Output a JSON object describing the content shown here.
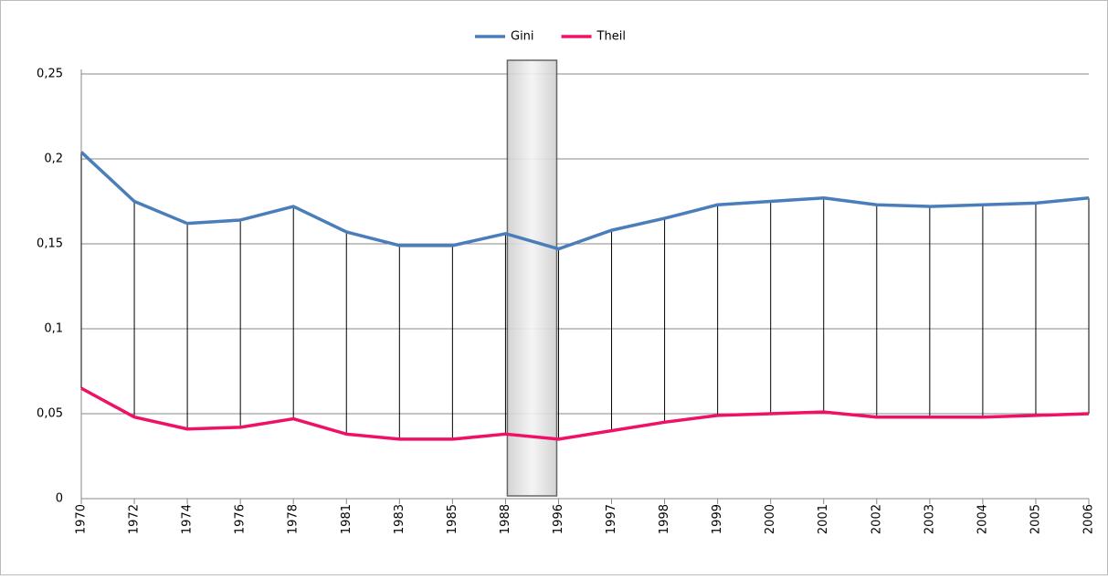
{
  "chart_data": {
    "type": "line",
    "categories": [
      "1970",
      "1972",
      "1974",
      "1976",
      "1978",
      "1981",
      "1983",
      "1985",
      "1988",
      "1996",
      "1997",
      "1998",
      "1999",
      "2000",
      "2001",
      "2002",
      "2003",
      "2004",
      "2005",
      "2006"
    ],
    "series": [
      {
        "name": "Gini",
        "color": "#4a7ebb",
        "values": [
          0.204,
          0.175,
          0.162,
          0.164,
          0.172,
          0.157,
          0.149,
          0.149,
          0.156,
          0.147,
          0.158,
          0.165,
          0.173,
          0.175,
          0.177,
          0.173,
          0.172,
          0.173,
          0.174,
          0.177
        ]
      },
      {
        "name": "Theil",
        "color": "#ee1166",
        "values": [
          0.065,
          0.048,
          0.041,
          0.042,
          0.047,
          0.038,
          0.035,
          0.035,
          0.038,
          0.035,
          0.04,
          0.045,
          0.049,
          0.05,
          0.051,
          0.048,
          0.048,
          0.048,
          0.049,
          0.05
        ]
      }
    ],
    "ylim": [
      0,
      0.25
    ],
    "yticks": [
      0,
      {
        "value": 0.05,
        "label": "0,05"
      },
      {
        "value": 0.1,
        "label": "0,1"
      },
      {
        "value": 0.15,
        "label": "0,15"
      },
      {
        "value": 0.2,
        "label": "0,2"
      },
      {
        "value": 0.25,
        "label": "0,25"
      }
    ],
    "grid": true,
    "legend": "top"
  }
}
